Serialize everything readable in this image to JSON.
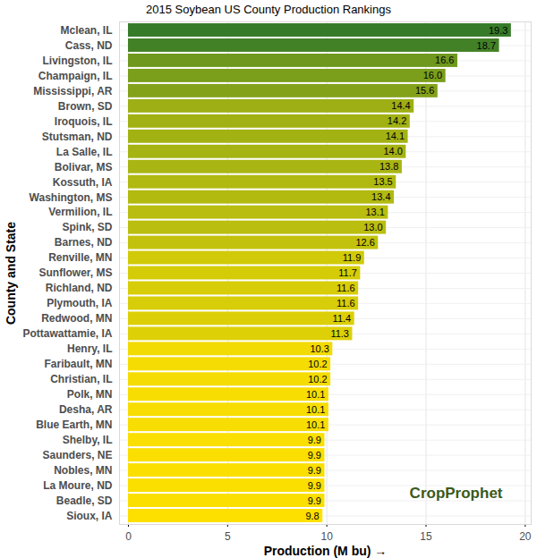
{
  "chart_data": {
    "type": "bar",
    "title": "2015 Soybean US County Production Rankings",
    "x_label": "Production (M bu)",
    "y_label": "County and State",
    "orientation": "horizontal",
    "categories": [
      "Mclean, IL",
      "Cass, ND",
      "Livingston, IL",
      "Champaign, IL",
      "Mississippi, AR",
      "Brown, SD",
      "Iroquois, IL",
      "Stutsman, ND",
      "La Salle, IL",
      "Bolivar, MS",
      "Kossuth, IA",
      "Washington, MS",
      "Vermilion, IL",
      "Spink, SD",
      "Barnes, ND",
      "Renville, MN",
      "Sunflower, MS",
      "Richland, ND",
      "Plymouth, IA",
      "Redwood, MN",
      "Pottawattamie, IA",
      "Henry, IL",
      "Faribault, MN",
      "Christian, IL",
      "Polk, MN",
      "Desha, AR",
      "Blue Earth, MN",
      "Shelby, IL",
      "Saunders, NE",
      "Nobles, MN",
      "La Moure, ND",
      "Beadle, SD",
      "Sioux, IA"
    ],
    "values": [
      19.3,
      18.7,
      16.6,
      16.0,
      15.6,
      14.4,
      14.2,
      14.1,
      14.0,
      13.8,
      13.5,
      13.4,
      13.1,
      13.0,
      12.6,
      11.9,
      11.7,
      11.6,
      11.6,
      11.4,
      11.3,
      10.3,
      10.2,
      10.2,
      10.1,
      10.1,
      10.1,
      9.9,
      9.9,
      9.9,
      9.9,
      9.9,
      9.8
    ],
    "value_labels": [
      "19.3",
      "18.7",
      "16.6",
      "16.0",
      "15.6",
      "14.4",
      "14.2",
      "14.1",
      "14.0",
      "13.8",
      "13.5",
      "13.4",
      "13.1",
      "13.0",
      "12.6",
      "11.9",
      "11.7",
      "11.6",
      "11.6",
      "11.4",
      "11.3",
      "10.3",
      "10.2",
      "10.2",
      "10.1",
      "10.1",
      "10.1",
      "9.9",
      "9.9",
      "9.9",
      "9.9",
      "9.9",
      "9.8"
    ],
    "colors": [
      "#367b2a",
      "#438127",
      "#6f981e",
      "#7b9e1b",
      "#83a21a",
      "#9daf14",
      "#a1b113",
      "#a3b213",
      "#a5b313",
      "#a9b512",
      "#b0b910",
      "#b2ba10",
      "#b8bd0f",
      "#babe0e",
      "#c2c20c",
      "#d1ca09",
      "#d5cc08",
      "#d7cd08",
      "#d7cd08",
      "#dccf07",
      "#ded007",
      "#f2db02",
      "#f5dc02",
      "#f5dc02",
      "#f7dd01",
      "#f7dd01",
      "#f7dd01",
      "#fbdf00",
      "#fbdf00",
      "#fbdf00",
      "#fbdf00",
      "#fbdf00",
      "#fde000"
    ],
    "xlim": [
      -0.45,
      20.3
    ],
    "xticks": [
      0,
      5,
      10,
      15,
      20
    ],
    "grid": true,
    "data_labels": true,
    "annotations": [
      "CropProphet"
    ]
  }
}
